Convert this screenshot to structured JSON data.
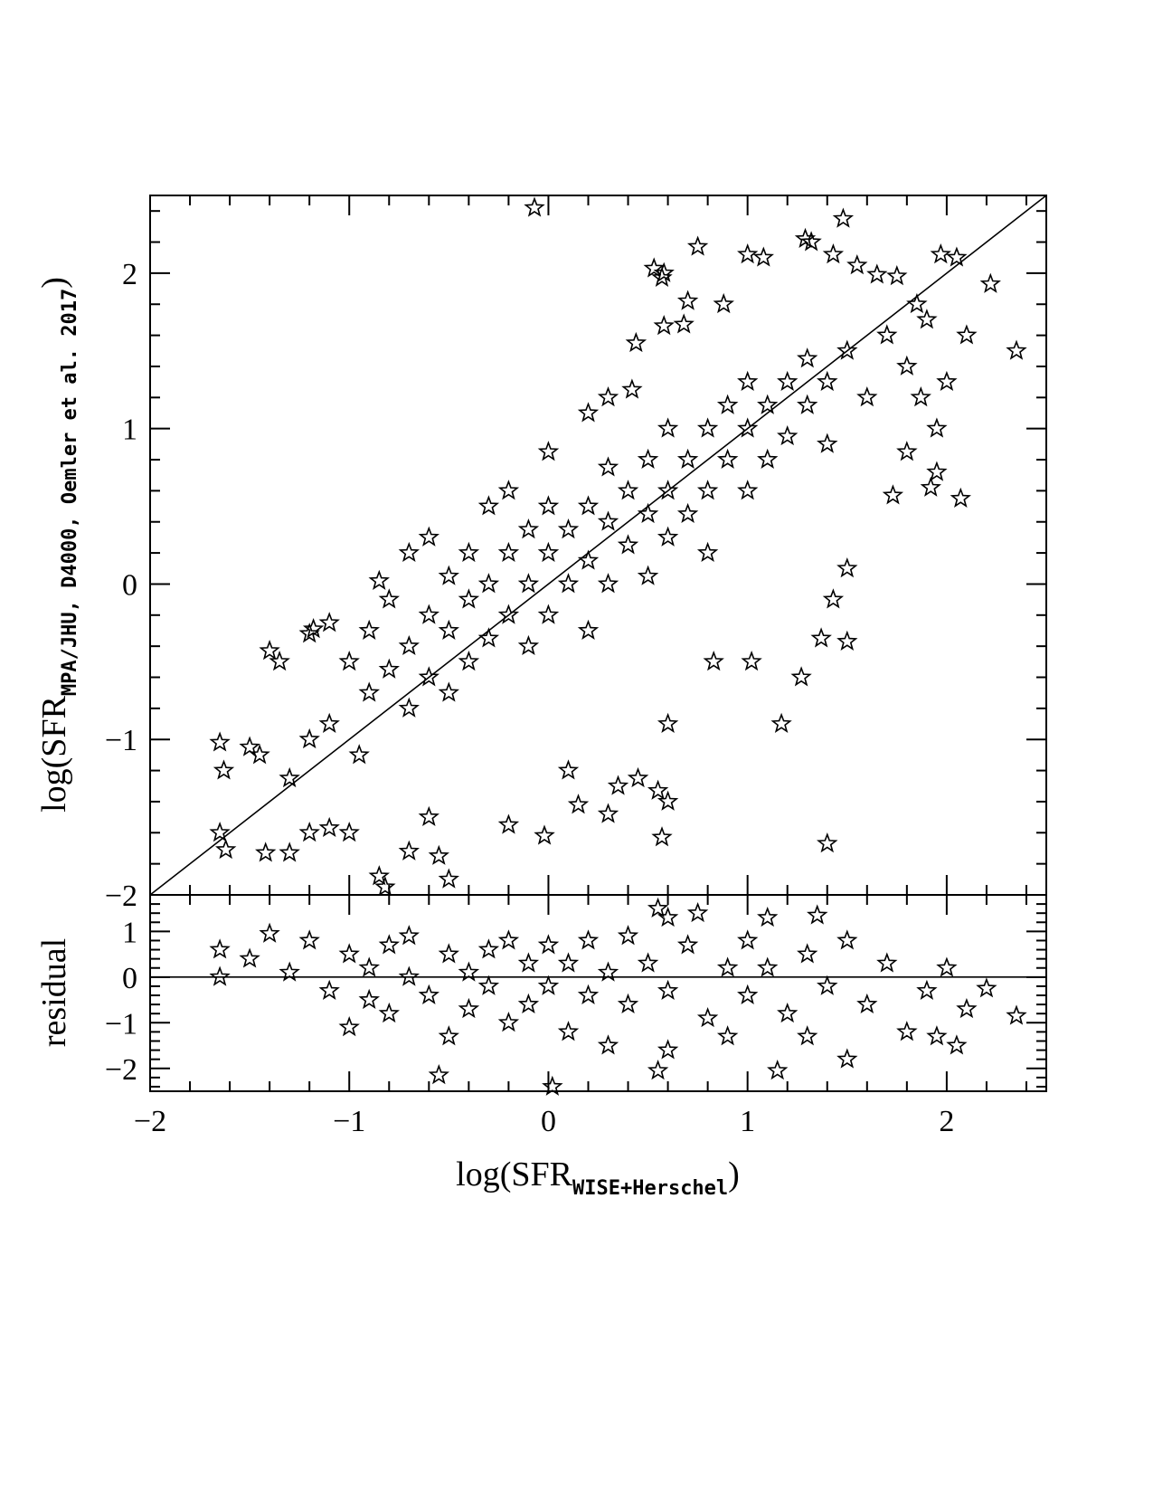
{
  "chart_data": [
    {
      "type": "scatter",
      "ylabel": {
        "text": "log(SFR",
        "subscript": "MPA/JHU, D4000, Oemler et al. 2017",
        "close": ")"
      },
      "xlim": [
        -2,
        2.5
      ],
      "ylim": [
        -2,
        2.5
      ],
      "yticks": [
        {
          "value": -2,
          "label": "−2"
        },
        {
          "value": -1,
          "label": "−1"
        },
        0,
        1,
        2
      ],
      "yticks_minor": [
        -1.8,
        -1.6,
        -1.4,
        -1.2,
        -0.8,
        -0.6,
        -0.4,
        -0.2,
        0.2,
        0.4,
        0.6,
        0.8,
        1.2,
        1.4,
        1.6,
        1.8,
        2.2,
        2.4
      ],
      "color": "#000000",
      "lines": [
        {
          "x": [
            -2,
            2.5
          ],
          "y": [
            -2,
            2.5
          ]
        }
      ],
      "x": [
        -0.07,
        0.53,
        0.57,
        0.58,
        0.75,
        1.0,
        1.08,
        1.29,
        1.32,
        1.48,
        1.43,
        1.55,
        1.97,
        2.05,
        2.22,
        2.35,
        1.65,
        1.75,
        0.44,
        0.58,
        0.68,
        0.7,
        0.88,
        1.85,
        1.87,
        1.8,
        1.95,
        1.92,
        2.07,
        1.73,
        1.5,
        1.43,
        1.37,
        1.5,
        1.27,
        1.17,
        1.4,
        0.57,
        0.55,
        0.6,
        0.3,
        -0.02,
        -0.5,
        -0.85,
        -0.82,
        -1.3,
        -1.42,
        -1.62,
        -1.65,
        -1.65,
        -1.63,
        -1.5,
        -1.45,
        -1.4,
        -1.35,
        -1.2,
        -1.1,
        -1.18,
        -1.2,
        -1.1,
        -1.0,
        -0.7,
        -0.6,
        -0.55,
        -0.2,
        0.1,
        0.15,
        0.45,
        0.35,
        0.83,
        1.02,
        0.6,
        -0.85,
        -0.7,
        -0.6,
        -0.3,
        -0.2,
        0.0,
        0.2,
        0.3,
        0.42,
        -1.0,
        -0.9,
        -0.9,
        -0.8,
        -0.8,
        -0.7,
        -0.7,
        -0.6,
        -0.6,
        -0.5,
        -0.5,
        -0.5,
        -0.4,
        -0.4,
        -0.4,
        -0.3,
        -0.3,
        -0.2,
        -0.2,
        -0.1,
        -0.1,
        -0.1,
        0.0,
        0.0,
        0.0,
        0.1,
        0.1,
        0.2,
        0.2,
        0.2,
        0.3,
        0.3,
        0.3,
        0.4,
        0.4,
        0.5,
        0.5,
        0.5,
        0.6,
        0.6,
        0.6,
        0.7,
        0.7,
        0.8,
        0.8,
        0.8,
        0.9,
        0.9,
        1.0,
        1.0,
        1.0,
        1.1,
        1.1,
        1.2,
        1.2,
        1.3,
        1.3,
        1.4,
        1.4,
        1.5,
        1.6,
        1.7,
        1.8,
        1.9,
        2.0,
        2.1,
        1.95,
        -1.1,
        -1.2,
        -1.3,
        -0.95
      ],
      "y": [
        2.42,
        2.03,
        1.97,
        2.0,
        2.17,
        2.12,
        2.1,
        2.22,
        2.2,
        2.35,
        2.12,
        2.05,
        2.12,
        2.1,
        1.93,
        1.5,
        1.99,
        1.98,
        1.55,
        1.66,
        1.67,
        1.82,
        1.8,
        1.8,
        1.2,
        0.85,
        0.72,
        0.62,
        0.55,
        0.57,
        0.1,
        -0.1,
        -0.35,
        -0.37,
        -0.6,
        -0.9,
        -1.67,
        -1.63,
        -1.33,
        -1.4,
        -1.48,
        -1.62,
        -1.9,
        -1.88,
        -1.95,
        -1.73,
        -1.73,
        -1.71,
        -1.6,
        -1.02,
        -1.2,
        -1.05,
        -1.1,
        -0.43,
        -0.5,
        -0.32,
        -0.25,
        -0.29,
        -1.6,
        -1.57,
        -1.6,
        -1.72,
        -1.5,
        -1.75,
        -1.55,
        -1.2,
        -1.42,
        -1.25,
        -1.3,
        -0.5,
        -0.5,
        -0.9,
        0.02,
        0.2,
        0.3,
        0.5,
        0.6,
        0.85,
        1.1,
        1.2,
        1.25,
        -0.5,
        -0.7,
        -0.3,
        -0.55,
        -0.1,
        -0.4,
        -0.8,
        -0.2,
        -0.6,
        -0.3,
        0.05,
        -0.7,
        -0.1,
        0.2,
        -0.5,
        0.0,
        -0.35,
        0.2,
        -0.2,
        0.35,
        0.0,
        -0.4,
        0.2,
        0.5,
        -0.2,
        0.35,
        0.0,
        0.5,
        0.15,
        -0.3,
        0.4,
        0.75,
        0.0,
        0.6,
        0.25,
        0.8,
        0.45,
        0.05,
        0.6,
        1.0,
        0.3,
        0.8,
        0.45,
        1.0,
        0.6,
        0.2,
        1.15,
        0.8,
        1.0,
        0.6,
        1.3,
        1.15,
        0.8,
        1.3,
        0.95,
        1.15,
        1.45,
        1.3,
        0.9,
        1.5,
        1.2,
        1.6,
        1.4,
        1.7,
        1.3,
        1.6,
        1.0,
        -0.9,
        -1.0,
        -1.25,
        -1.1
      ]
    },
    {
      "type": "scatter",
      "ylabel": "residual",
      "xlabel": {
        "text": "log(SFR",
        "subscript": "WISE+Herschel",
        "close": ")"
      },
      "xlim": [
        -2,
        2.5
      ],
      "ylim": [
        -2.5,
        1.8
      ],
      "xticks": [
        {
          "value": -2,
          "label": "−2"
        },
        {
          "value": -1,
          "label": "−1"
        },
        0,
        1,
        2
      ],
      "xticks_minor": [
        -1.8,
        -1.6,
        -1.4,
        -1.2,
        -0.8,
        -0.6,
        -0.4,
        -0.2,
        0.2,
        0.4,
        0.6,
        0.8,
        1.2,
        1.4,
        1.6,
        1.8,
        2.2,
        2.4
      ],
      "yticks": [
        {
          "value": -2,
          "label": "−2"
        },
        {
          "value": -1,
          "label": "−1"
        },
        0,
        1
      ],
      "yticks_minor": [
        -2.4,
        -2.2,
        -1.8,
        -1.6,
        -1.4,
        -1.2,
        -0.8,
        -0.6,
        -0.4,
        -0.2,
        0.2,
        0.4,
        0.6,
        0.8,
        1.2,
        1.4,
        1.6
      ],
      "color": "#000000",
      "lines": [
        {
          "x": [
            -2,
            2.5
          ],
          "y": [
            0,
            0
          ]
        }
      ],
      "x": [
        -1.65,
        -1.65,
        -1.5,
        -1.4,
        -1.3,
        -1.2,
        -1.1,
        -1.0,
        -1.0,
        -0.9,
        -0.9,
        -0.8,
        -0.8,
        -0.7,
        -0.7,
        -0.6,
        -0.55,
        -0.5,
        -0.5,
        -0.4,
        -0.4,
        -0.3,
        -0.3,
        -0.2,
        -0.2,
        -0.1,
        -0.1,
        0.0,
        0.0,
        0.02,
        0.1,
        0.1,
        0.2,
        0.2,
        0.3,
        0.3,
        0.4,
        0.4,
        0.5,
        0.55,
        0.6,
        0.55,
        0.6,
        0.6,
        0.7,
        0.75,
        0.8,
        0.9,
        0.9,
        1.0,
        1.0,
        1.1,
        1.1,
        1.15,
        1.2,
        1.3,
        1.3,
        1.35,
        1.4,
        1.5,
        1.5,
        1.6,
        1.7,
        1.8,
        1.9,
        2.0,
        1.95,
        2.05,
        2.1,
        2.2,
        2.35
      ],
      "y": [
        0.6,
        0.0,
        0.4,
        0.95,
        0.1,
        0.8,
        -0.3,
        0.5,
        -1.1,
        0.2,
        -0.5,
        0.7,
        -0.8,
        0.0,
        0.9,
        -0.4,
        -2.15,
        0.5,
        -1.3,
        0.1,
        -0.7,
        0.6,
        -0.2,
        0.8,
        -1.0,
        0.3,
        -0.6,
        0.7,
        -0.2,
        -2.4,
        0.3,
        -1.2,
        0.8,
        -0.4,
        0.1,
        -1.5,
        0.9,
        -0.6,
        0.3,
        1.5,
        1.3,
        -2.05,
        -1.6,
        -0.3,
        0.7,
        1.4,
        -0.9,
        0.2,
        -1.3,
        0.8,
        -0.4,
        1.3,
        0.2,
        -2.05,
        -0.8,
        0.5,
        -1.3,
        1.35,
        -0.2,
        0.8,
        -1.8,
        -0.6,
        0.3,
        -1.2,
        -0.3,
        0.2,
        -1.3,
        -1.5,
        -0.7,
        -0.25,
        -0.85
      ]
    }
  ]
}
